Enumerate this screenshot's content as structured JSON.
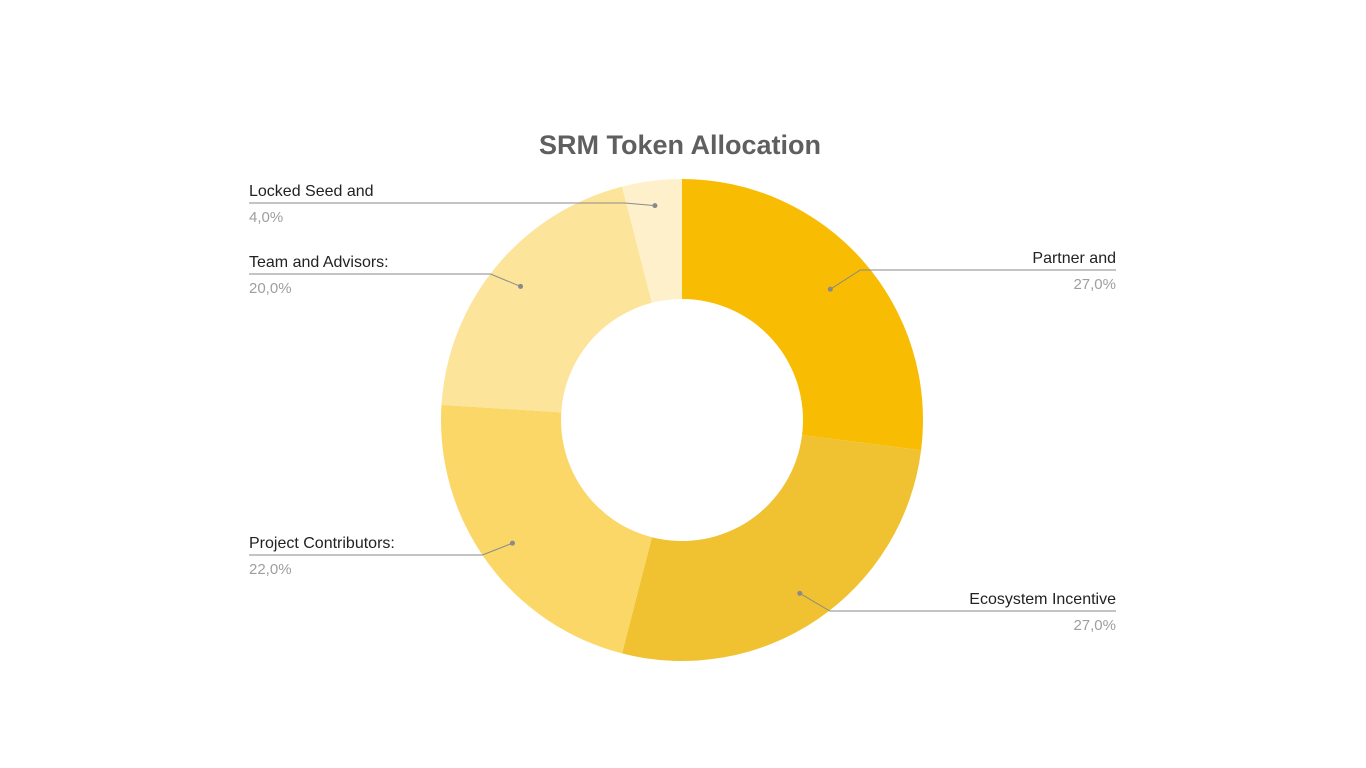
{
  "chart_data": {
    "type": "pie",
    "style": "donut",
    "title": "SRM Token Allocation",
    "slices": [
      {
        "label": "Partner and",
        "value": 27.0,
        "value_label": "27,0%",
        "color": "#f8bc03"
      },
      {
        "label": "Ecosystem Incentive",
        "value": 27.0,
        "value_label": "27,0%",
        "color": "#f0c232"
      },
      {
        "label": "Project Contributors:",
        "value": 22.0,
        "value_label": "22,0%",
        "color": "#fad766"
      },
      {
        "label": "Team and Advisors:",
        "value": 20.0,
        "value_label": "20,0%",
        "color": "#fde49b"
      },
      {
        "label": "Locked Seed and",
        "value": 4.0,
        "value_label": "4,0%",
        "color": "#fff0cc"
      }
    ],
    "start_angle_deg": 0,
    "direction": "clockwise",
    "legend": "none"
  }
}
